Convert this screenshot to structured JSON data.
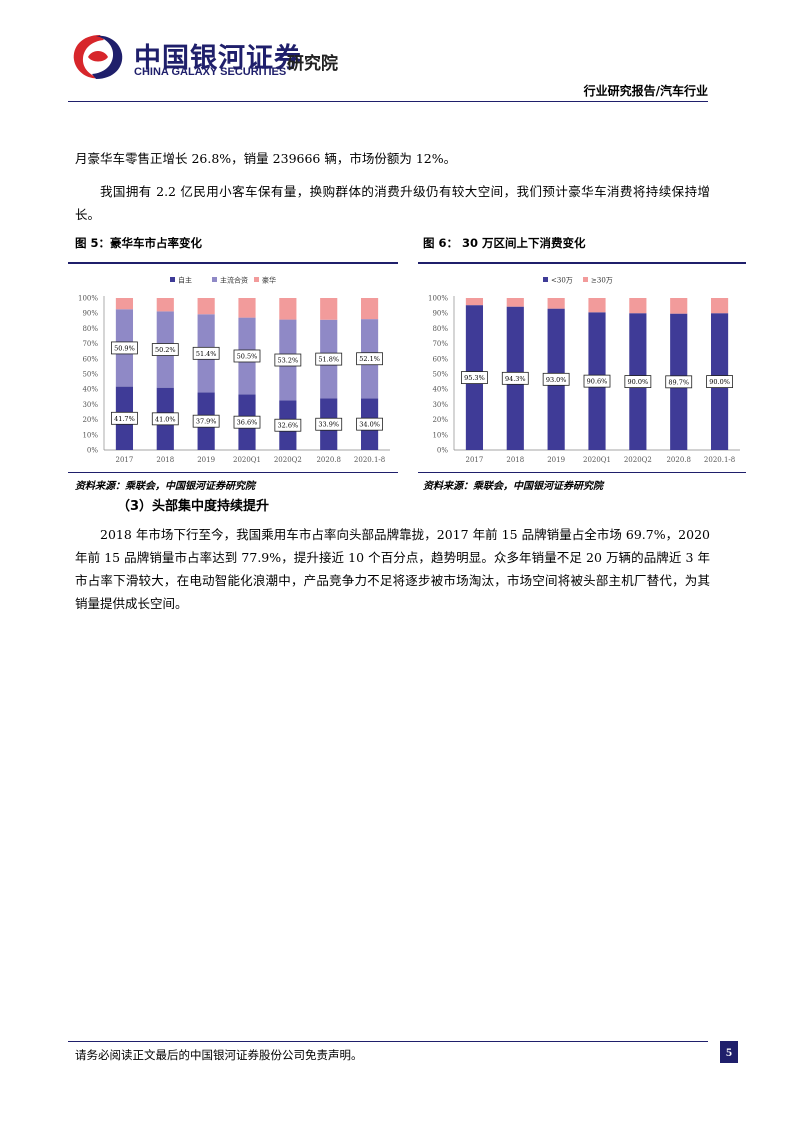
{
  "header": {
    "logo_cn": "中国银河证券",
    "logo_en": "CHINA GALAXY SECURITIES",
    "institute": "研究院",
    "category": "行业研究报告/汽车行业"
  },
  "body": {
    "para1": "月豪华车零售正增长 26.8%，销量 239666 辆，市场份额为 12%。",
    "para2": "我国拥有 2.2 亿民用小客车保有量，换购群体的消费升级仍有较大空间，我们预计豪华车消费将持续保持增长。",
    "section_heading": "（3）头部集中度持续提升",
    "para3": "2018 年市场下行至今，我国乘用车市占率向头部品牌靠拢，2017 年前 15 品牌销量占全市场 69.7%，2020 年前 15 品牌销量市占率达到 77.9%，提升接近 10 个百分点，趋势明显。众多年销量不足 20 万辆的品牌近 3 年市占率下滑较大，在电动智能化浪潮中，产品竞争力不足将逐步被市场淘汰，市场空间将被头部主机厂替代，为其销量提供成长空间。"
  },
  "figures": {
    "fig5_title": "图 5：豪华车市占率变化",
    "fig6_title": "图 6：  30 万区间上下消费变化",
    "source5": "资料来源：乘联会，中国银河证券研究院",
    "source6": "资料来源：乘联会，中国银河证券研究院"
  },
  "colors": {
    "dark": "#3f3b97",
    "mid": "#8f89c6",
    "pink": "#f29b9b",
    "brand": "#1f1f6b"
  },
  "chart_data": [
    {
      "type": "bar",
      "stacked": true,
      "categories": [
        "2017",
        "2018",
        "2019",
        "2020Q1",
        "2020Q2",
        "2020.8",
        "2020.1-8"
      ],
      "series": [
        {
          "name": "自主",
          "values": [
            41.7,
            41.0,
            37.9,
            36.6,
            32.6,
            33.9,
            34.0
          ],
          "labels": [
            "41.7%",
            "41.0%",
            "37.9%",
            "36.6%",
            "32.6%",
            "33.9%",
            "34.0%"
          ]
        },
        {
          "name": "主流合资",
          "values": [
            50.9,
            50.2,
            51.4,
            50.5,
            53.2,
            51.8,
            52.1
          ],
          "labels": [
            "50.9%",
            "50.2%",
            "51.4%",
            "50.5%",
            "53.2%",
            "51.8%",
            "52.1%"
          ]
        },
        {
          "name": "豪华",
          "values": [
            7.4,
            8.8,
            10.7,
            12.9,
            14.2,
            14.3,
            13.9
          ]
        }
      ],
      "ylim": [
        0,
        100
      ],
      "yticks": [
        "0%",
        "10%",
        "20%",
        "30%",
        "40%",
        "50%",
        "60%",
        "70%",
        "80%",
        "90%",
        "100%"
      ],
      "legend": "top-center",
      "grid": false
    },
    {
      "type": "bar",
      "stacked": true,
      "categories": [
        "2017",
        "2018",
        "2019",
        "2020Q1",
        "2020Q2",
        "2020.8",
        "2020.1-8"
      ],
      "series": [
        {
          "name": "<30万",
          "values": [
            95.3,
            94.3,
            93.0,
            90.6,
            90.0,
            89.7,
            90.0
          ],
          "labels": [
            "95.3%",
            "94.3%",
            "93.0%",
            "90.6%",
            "90.0%",
            "89.7%",
            "90.0%"
          ]
        },
        {
          "name": "≥30万",
          "values": [
            4.7,
            5.7,
            7.0,
            9.4,
            10.0,
            10.3,
            10.0
          ]
        }
      ],
      "ylim": [
        0,
        100
      ],
      "yticks": [
        "0%",
        "10%",
        "20%",
        "30%",
        "40%",
        "50%",
        "60%",
        "70%",
        "80%",
        "90%",
        "100%"
      ],
      "legend": "top-center",
      "grid": false
    }
  ],
  "footer": {
    "disclaimer": "请务必阅读正文最后的中国银河证券股份公司免责声明。",
    "page_number": "5"
  }
}
